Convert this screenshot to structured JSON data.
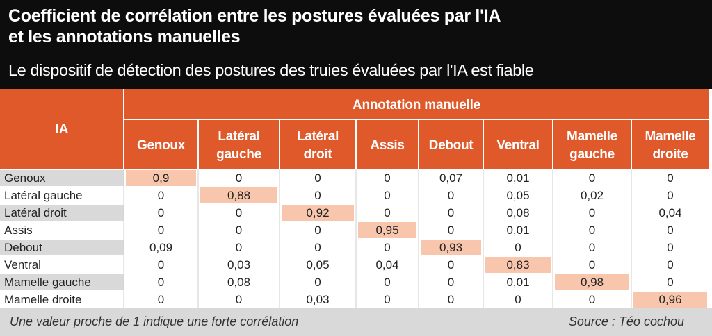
{
  "title_line1": "Coefficient de corrélation entre les postures évaluées par l'IA",
  "title_line2": "et les annotations manuelles",
  "subtitle": "Le dispositif de détection des postures des truies évaluées par l'IA est fiable",
  "chart_data": {
    "type": "table",
    "row_header": "IA",
    "column_group_header": "Annotation manuelle",
    "columns": [
      [
        "Genoux"
      ],
      [
        "Latéral",
        "gauche"
      ],
      [
        "Latéral",
        "droit"
      ],
      [
        "Assis"
      ],
      [
        "Debout"
      ],
      [
        "Ventral"
      ],
      [
        "Mamelle",
        "gauche"
      ],
      [
        "Mamelle",
        "droite"
      ]
    ],
    "rows": [
      "Genoux",
      "Latéral gauche",
      "Latéral droit",
      "Assis",
      "Debout",
      "Ventral",
      "Mamelle gauche",
      "Mamelle droite"
    ],
    "values": [
      [
        "0,9",
        "0",
        "0",
        "0",
        "0,07",
        "0,01",
        "0",
        "0"
      ],
      [
        "0",
        "0,88",
        "0",
        "0",
        "0",
        "0,05",
        "0,02",
        "0"
      ],
      [
        "0",
        "0",
        "0,92",
        "0",
        "0",
        "0,08",
        "0",
        "0,04"
      ],
      [
        "0",
        "0",
        "0",
        "0,95",
        "0",
        "0,01",
        "0",
        "0"
      ],
      [
        "0,09",
        "0",
        "0",
        "0",
        "0,93",
        "0",
        "0",
        "0"
      ],
      [
        "0",
        "0,03",
        "0,05",
        "0,04",
        "0",
        "0,83",
        "0",
        "0"
      ],
      [
        "0",
        "0,08",
        "0",
        "0",
        "0",
        "0,01",
        "0,98",
        "0"
      ],
      [
        "0",
        "0",
        "0,03",
        "0",
        "0",
        "0",
        "0",
        "0,96"
      ]
    ]
  },
  "footer": {
    "note": "Une valeur proche de 1 indique une forte corrélation",
    "source": "Source : Téo cochou"
  },
  "colors": {
    "header_bg": "#0d0d0d",
    "accent_orange": "#e0592a",
    "diagonal_highlight": "#f8c6ac",
    "row_label_alt": "#d9d9d9",
    "footer_bg": "#d9d9d9"
  }
}
